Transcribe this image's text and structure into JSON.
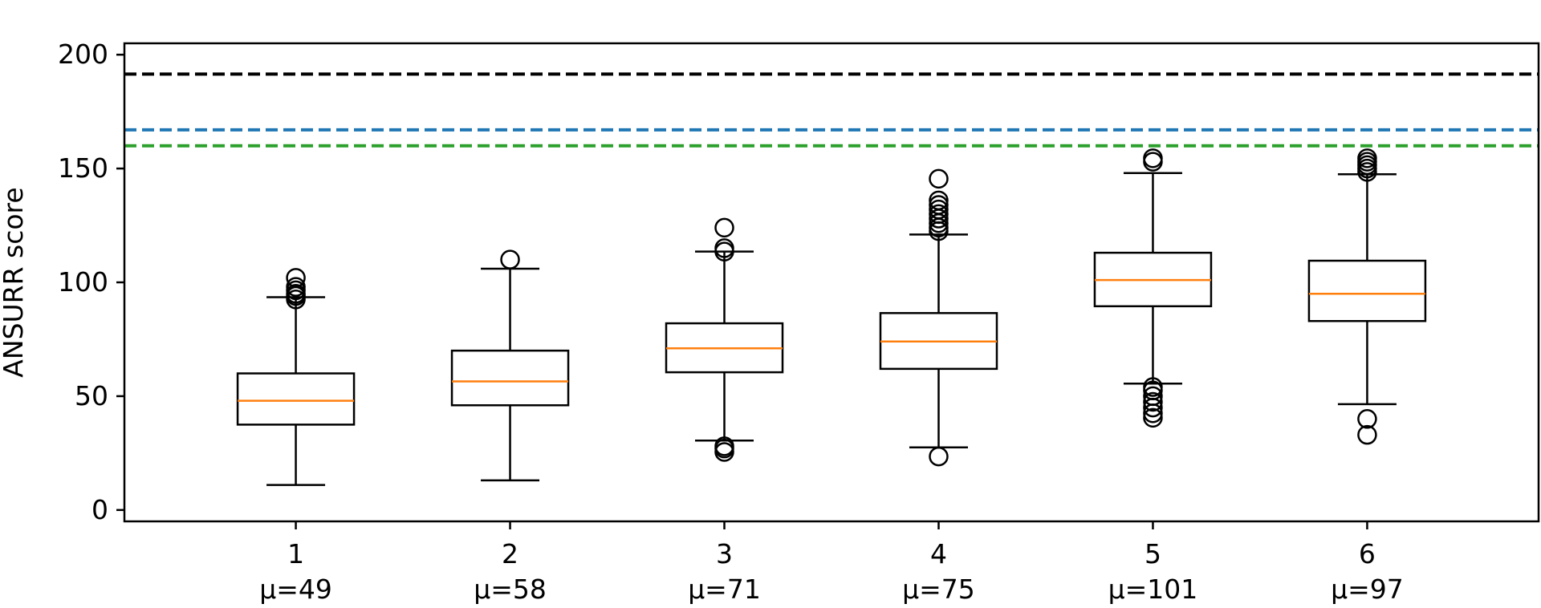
{
  "chart_data": {
    "type": "boxplot",
    "ylabel": "ANSURR score",
    "xlabel": "",
    "ylim": [
      -5,
      205
    ],
    "yticks": [
      "0",
      "50",
      "100",
      "150",
      "200"
    ],
    "grid": false,
    "categories": [
      "1",
      "2",
      "3",
      "4",
      "5",
      "6"
    ],
    "mean_labels": [
      "μ=49",
      "μ=58",
      "μ=71",
      "μ=75",
      "μ=101",
      "μ=97"
    ],
    "boxes": [
      {
        "whislo": 11,
        "q1": 37.5,
        "med": 48,
        "q3": 60,
        "whishi": 93.5,
        "fliers": [
          92.5,
          94,
          95,
          96.5,
          98,
          102
        ]
      },
      {
        "whislo": 13,
        "q1": 46,
        "med": 56.5,
        "q3": 70,
        "whishi": 106,
        "fliers": [
          110
        ]
      },
      {
        "whislo": 30.5,
        "q1": 60.5,
        "med": 71,
        "q3": 82,
        "whishi": 113.5,
        "fliers": [
          25.5,
          27,
          28,
          113.5,
          115,
          124
        ]
      },
      {
        "whislo": 27.5,
        "q1": 62,
        "med": 74,
        "q3": 86.5,
        "whishi": 121,
        "fliers": [
          23.5,
          122.5,
          124,
          126,
          128,
          130,
          132,
          134,
          136,
          145.5
        ]
      },
      {
        "whislo": 55.5,
        "q1": 89.5,
        "med": 101,
        "q3": 113,
        "whishi": 148,
        "fliers": [
          40.5,
          42.5,
          45,
          47.5,
          50,
          52.5,
          54,
          153,
          154.5
        ]
      },
      {
        "whislo": 46.5,
        "q1": 83,
        "med": 95,
        "q3": 109.5,
        "whishi": 147.5,
        "fliers": [
          33,
          40,
          148.5,
          150,
          151.5,
          153,
          154.5
        ]
      }
    ],
    "reference_lines": [
      {
        "y": 191.5,
        "color": "#000000"
      },
      {
        "y": 167,
        "color": "#1f77b4"
      },
      {
        "y": 160,
        "color": "#2ca02c"
      }
    ],
    "colors": {
      "box": "#000000",
      "median": "#ff7f0e",
      "flier_edge": "#000000"
    }
  }
}
